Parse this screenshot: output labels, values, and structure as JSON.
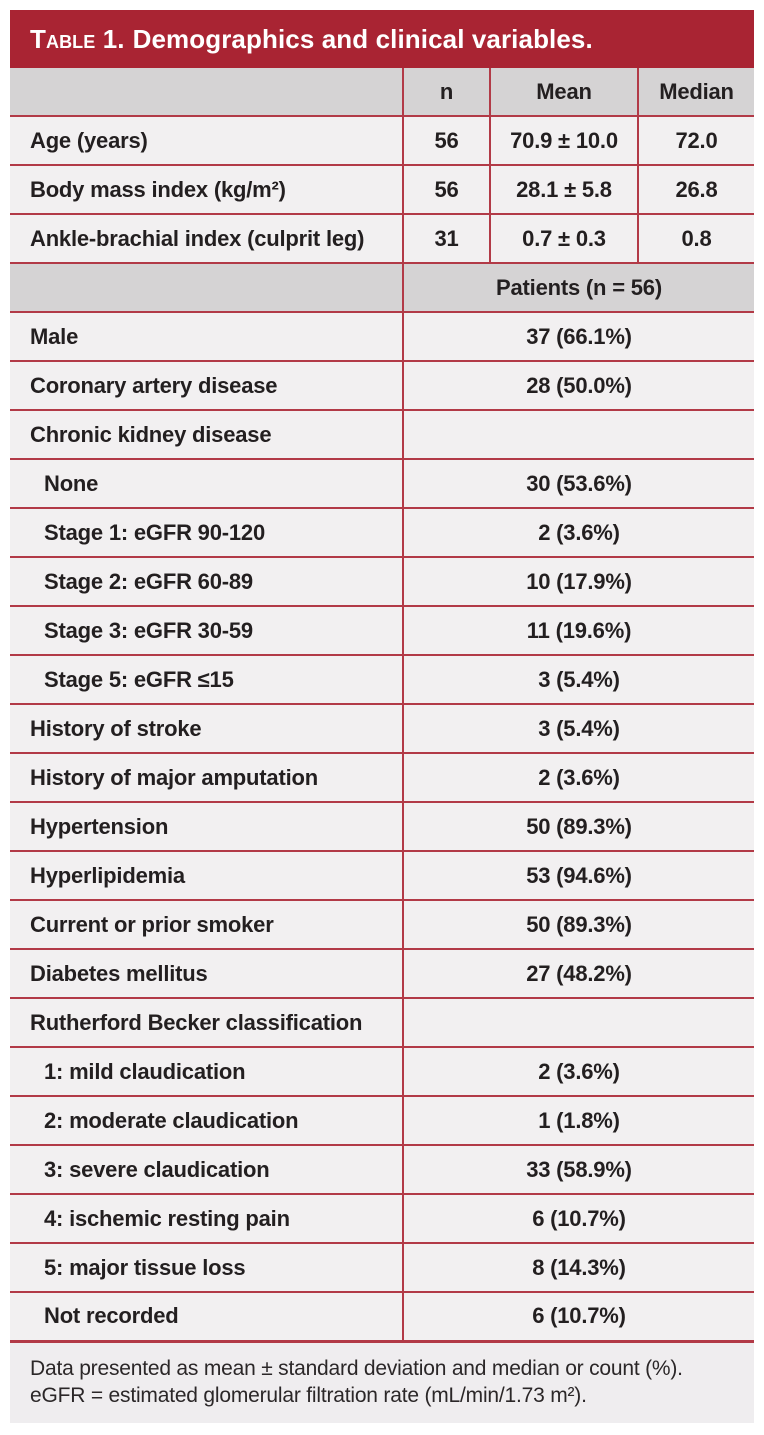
{
  "title": {
    "label": "Table 1.",
    "text": "Demographics and clinical variables."
  },
  "stat_header": {
    "cols": [
      "n",
      "Mean",
      "Median"
    ]
  },
  "stat_rows": [
    {
      "label": "Age (years)",
      "n": "56",
      "mean": "70.9 ± 10.0",
      "median": "72.0"
    },
    {
      "label": "Body mass index (kg/m²)",
      "n": "56",
      "mean": "28.1 ± 5.8",
      "median": "26.8"
    },
    {
      "label": "Ankle-brachial index (culprit leg)",
      "n": "31",
      "mean": "0.7 ± 0.3",
      "median": "0.8"
    }
  ],
  "patients_header": "Patients (n = 56)",
  "patient_rows": [
    {
      "label": "Male",
      "value": "37 (66.1%)",
      "indent": false
    },
    {
      "label": "Coronary artery disease",
      "value": "28 (50.0%)",
      "indent": false
    },
    {
      "label": "Chronic kidney disease",
      "value": "",
      "indent": false
    },
    {
      "label": "None",
      "value": "30 (53.6%)",
      "indent": true
    },
    {
      "label": "Stage 1: eGFR 90-120",
      "value": "2 (3.6%)",
      "indent": true
    },
    {
      "label": "Stage 2: eGFR 60-89",
      "value": "10 (17.9%)",
      "indent": true
    },
    {
      "label": "Stage 3: eGFR 30-59",
      "value": "11 (19.6%)",
      "indent": true
    },
    {
      "label": "Stage 5: eGFR ≤15",
      "value": "3 (5.4%)",
      "indent": true
    },
    {
      "label": "History of stroke",
      "value": "3 (5.4%)",
      "indent": false
    },
    {
      "label": "History of major amputation",
      "value": "2 (3.6%)",
      "indent": false
    },
    {
      "label": "Hypertension",
      "value": "50 (89.3%)",
      "indent": false
    },
    {
      "label": "Hyperlipidemia",
      "value": "53 (94.6%)",
      "indent": false
    },
    {
      "label": "Current or prior smoker",
      "value": "50 (89.3%)",
      "indent": false
    },
    {
      "label": "Diabetes mellitus",
      "value": "27 (48.2%)",
      "indent": false
    },
    {
      "label": "Rutherford Becker classification",
      "value": "",
      "indent": false
    },
    {
      "label": "1: mild claudication",
      "value": "2 (3.6%)",
      "indent": true
    },
    {
      "label": "2: moderate claudication",
      "value": "1 (1.8%)",
      "indent": true
    },
    {
      "label": "3: severe claudication",
      "value": "33 (58.9%)",
      "indent": true
    },
    {
      "label": "4: ischemic resting pain",
      "value": "6 (10.7%)",
      "indent": true
    },
    {
      "label": "5: major tissue loss",
      "value": "8 (14.3%)",
      "indent": true
    },
    {
      "label": "Not recorded",
      "value": "6 (10.7%)",
      "indent": true
    }
  ],
  "footnotes": [
    "Data presented as mean ± standard deviation and median or count (%).",
    "eGFR = estimated glomerular filtration rate (mL/min/1.73 m²)."
  ],
  "colors": {
    "accent_red": "#a92433",
    "border_red": "#b23a47",
    "header_gray": "#d5d3d4",
    "row_bg": "#f2f0f1",
    "footnote_bg": "#efedef",
    "text_ink": "#231f20"
  }
}
